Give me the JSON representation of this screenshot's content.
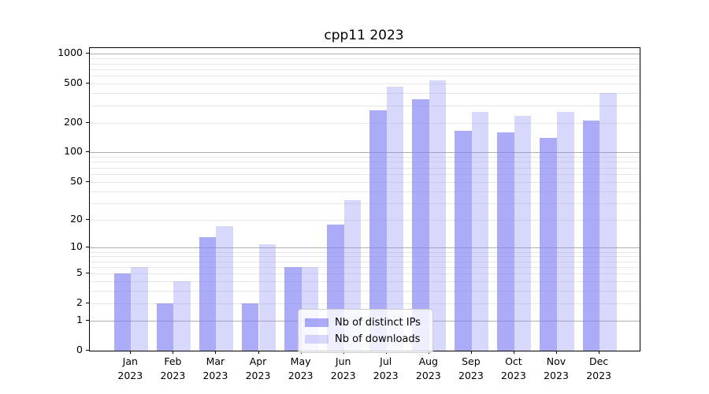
{
  "chart_data": {
    "type": "bar",
    "title": "cpp11 2023",
    "categories": [
      "Jan",
      "Feb",
      "Mar",
      "Apr",
      "May",
      "Jun",
      "Jul",
      "Aug",
      "Sep",
      "Oct",
      "Nov",
      "Dec"
    ],
    "category_year": "2023",
    "series": [
      {
        "name": "Nb of distinct IPs",
        "color": "rgba(128,128,245,0.66)",
        "values": [
          5,
          2,
          13,
          2,
          6,
          18,
          268,
          348,
          165,
          160,
          140,
          210
        ]
      },
      {
        "name": "Nb of downloads",
        "color": "rgba(128,128,245,0.31)",
        "values": [
          6,
          4,
          17,
          11,
          6,
          32,
          462,
          540,
          260,
          235,
          260,
          405
        ]
      }
    ],
    "ylabel": "",
    "xlabel": "",
    "yticks": [
      0,
      1,
      2,
      5,
      10,
      20,
      50,
      100,
      200,
      500,
      1000
    ],
    "ylim": [
      0,
      1145
    ],
    "scale": "log1p",
    "grid": "major-and-minor",
    "legend_position": "lower center"
  }
}
